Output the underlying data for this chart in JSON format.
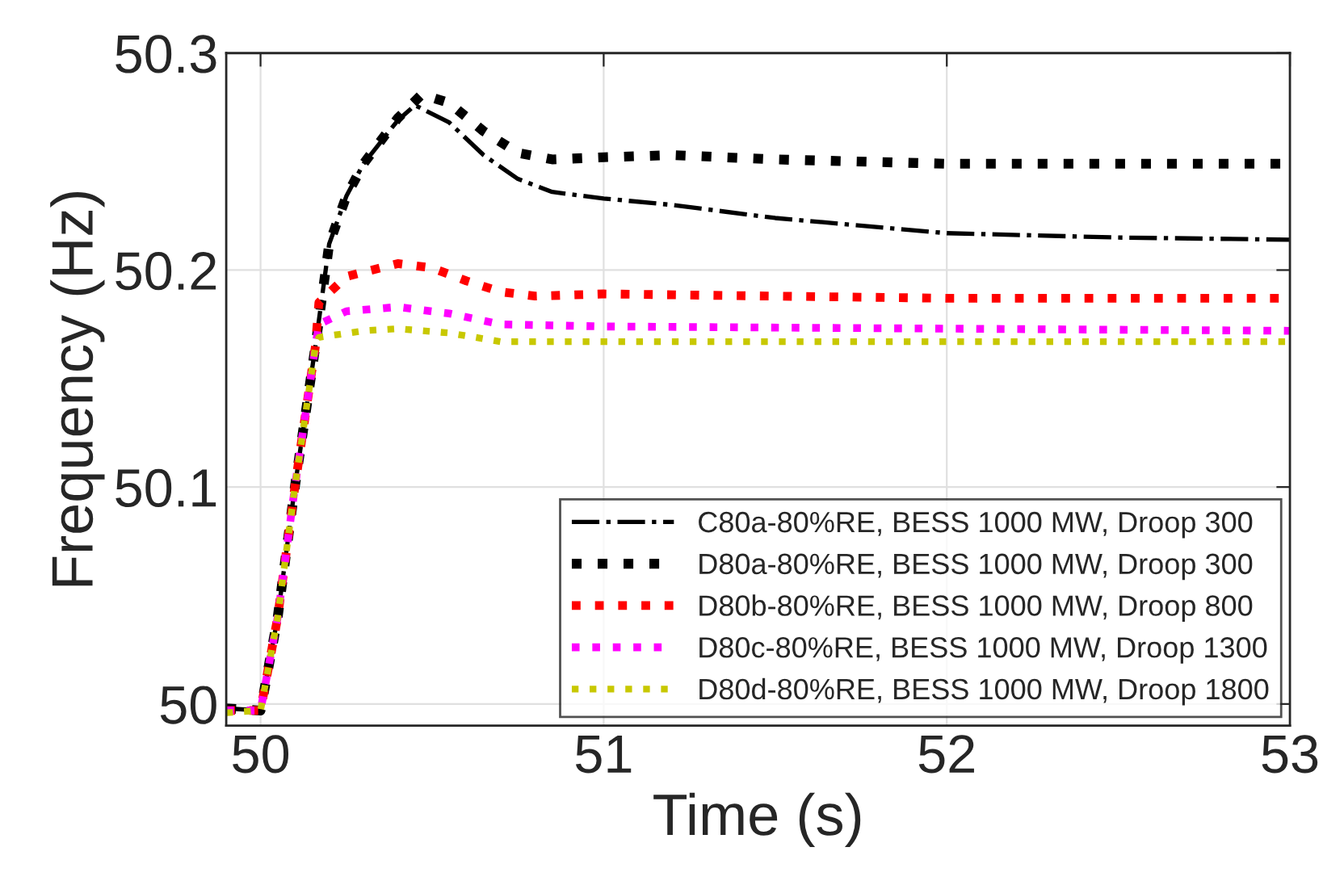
{
  "chart_data": {
    "type": "line",
    "xlabel": "Time (s)",
    "ylabel": "Frequency (Hz)",
    "xlim": [
      49.9,
      53
    ],
    "xticks": [
      50,
      51,
      52,
      53
    ],
    "ylim": [
      49.99,
      50.3
    ],
    "yticks": [
      50,
      50.1,
      50.2,
      50.3
    ],
    "grid": true,
    "legend": "lower right",
    "series": [
      {
        "name": "C80a-80%RE, BESS 1000 MW, Droop 300",
        "color": "#000000",
        "line_style": "dashdot",
        "x": [
          49.9,
          50.0,
          50.05,
          50.1,
          50.16,
          50.2,
          50.25,
          50.3,
          50.4,
          50.45,
          50.55,
          50.65,
          50.75,
          50.85,
          51.0,
          51.2,
          51.5,
          52.0,
          52.5,
          53.0
        ],
        "values": [
          49.998,
          49.997,
          50.04,
          50.1,
          50.165,
          50.212,
          50.234,
          50.249,
          50.269,
          50.276,
          50.268,
          50.253,
          50.242,
          50.236,
          50.233,
          50.23,
          50.224,
          50.217,
          50.215,
          50.214
        ]
      },
      {
        "name": "D80a-80%RE, BESS 1000 MW, Droop 300",
        "color": "#000000",
        "line_style": "dotted",
        "x": [
          49.9,
          50.0,
          50.05,
          50.1,
          50.16,
          50.2,
          50.25,
          50.3,
          50.4,
          50.47,
          50.55,
          50.65,
          50.75,
          50.85,
          51.0,
          51.2,
          51.5,
          52.0,
          53.0
        ],
        "values": [
          49.998,
          49.997,
          50.04,
          50.1,
          50.165,
          50.212,
          50.234,
          50.249,
          50.27,
          50.281,
          50.277,
          50.264,
          50.254,
          50.251,
          50.252,
          50.253,
          50.251,
          50.249,
          50.249
        ]
      },
      {
        "name": "D80b-80%RE, BESS 1000 MW, Droop 800",
        "color": "#ff0000",
        "line_style": "dotted",
        "x": [
          49.9,
          50.0,
          50.05,
          50.1,
          50.16,
          50.17,
          50.25,
          50.4,
          50.5,
          50.6,
          50.7,
          50.8,
          51.0,
          52.0,
          53.0
        ],
        "values": [
          49.997,
          49.997,
          50.04,
          50.1,
          50.165,
          50.185,
          50.197,
          50.203,
          50.201,
          50.195,
          50.19,
          50.188,
          50.189,
          50.187,
          50.187
        ]
      },
      {
        "name": "D80c-80%RE, BESS 1000 MW, Droop 1300",
        "color": "#ff00ff",
        "line_style": "dotted",
        "x": [
          49.9,
          50.0,
          50.05,
          50.1,
          50.16,
          50.17,
          50.25,
          50.4,
          50.55,
          50.7,
          51.0,
          53.0
        ],
        "values": [
          49.997,
          49.997,
          50.04,
          50.1,
          50.165,
          50.175,
          50.181,
          50.183,
          50.18,
          50.175,
          50.174,
          50.172
        ]
      },
      {
        "name": "D80d-80%RE, BESS 1000 MW, Droop 1800",
        "color": "#c8c800",
        "line_style": "dotted",
        "x": [
          49.9,
          50.0,
          50.05,
          50.1,
          50.16,
          50.17,
          50.3,
          50.4,
          50.55,
          50.7,
          51.0,
          53.0
        ],
        "values": [
          49.996,
          49.997,
          50.04,
          50.1,
          50.165,
          50.169,
          50.172,
          50.173,
          50.171,
          50.167,
          50.167,
          50.167
        ]
      }
    ]
  }
}
